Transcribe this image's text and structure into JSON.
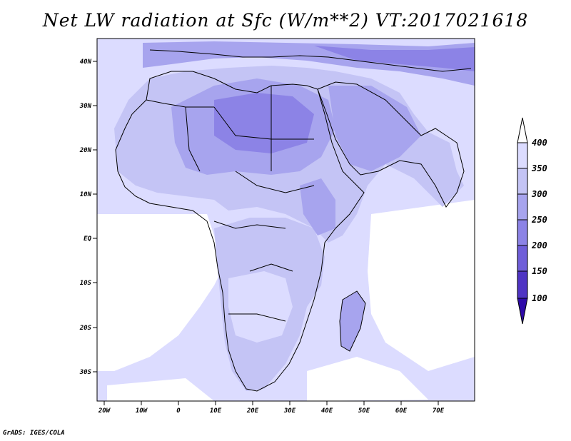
{
  "title": "Net LW radiation at Sfc (W/m**2) VT:2017021618",
  "footer": "GrADS: IGES/COLA",
  "map": {
    "lat_ticks": [
      "40N",
      "30N",
      "20N",
      "10N",
      "EQ",
      "10S",
      "20S",
      "30S"
    ],
    "lon_ticks": [
      "20W",
      "10W",
      "0",
      "10E",
      "20E",
      "30E",
      "40E",
      "50E",
      "60E",
      "70E"
    ]
  },
  "colorbar": {
    "levels": [
      "400",
      "350",
      "300",
      "250",
      "200",
      "150",
      "100"
    ],
    "colors": [
      "#ffffff",
      "#dcdcff",
      "#c4c4f5",
      "#a7a4ee",
      "#8c83e6",
      "#6f5ed9",
      "#4f34c4",
      "#2e0aa8"
    ]
  }
}
